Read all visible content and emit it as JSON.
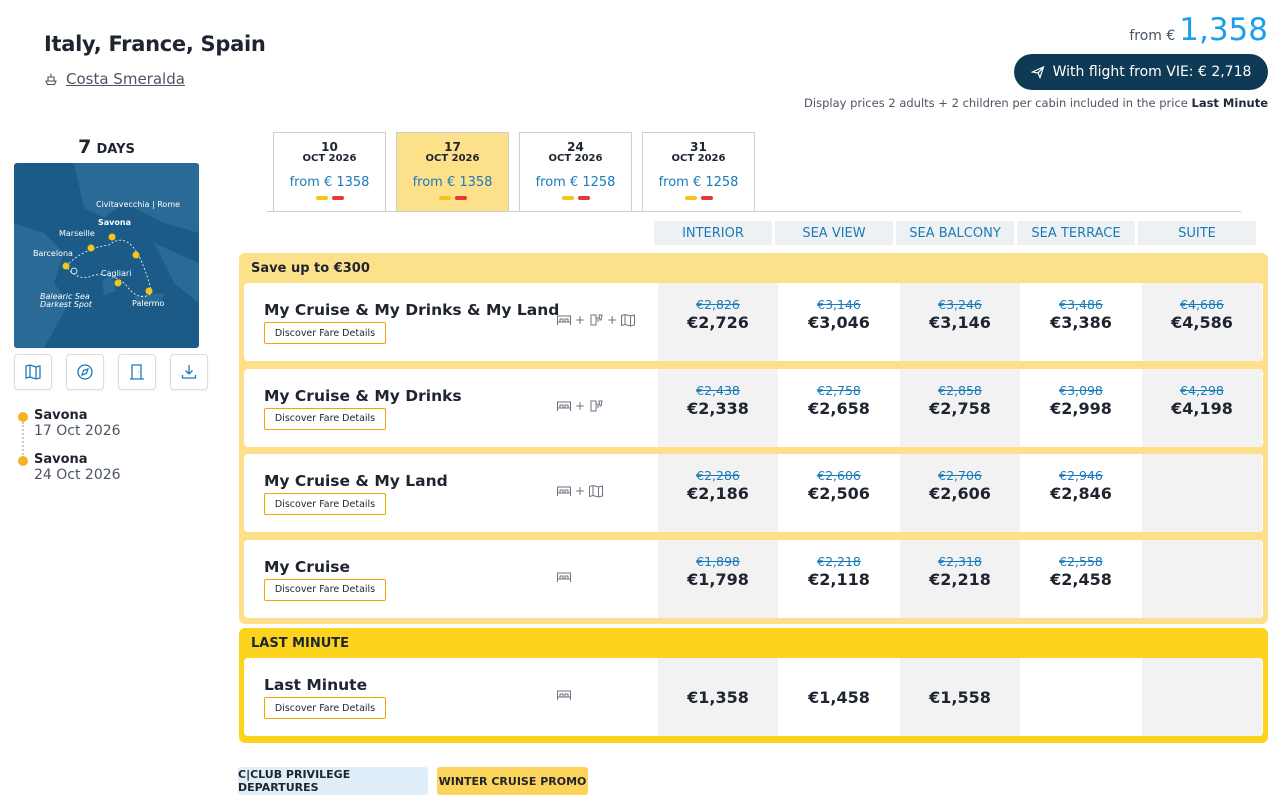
{
  "header": {
    "title": "Italy, France, Spain",
    "ship": "Costa Smeralda",
    "price_from_label": "from €",
    "price_from_value": "1,358",
    "flight_button": "With flight from VIE: € 2,718",
    "display_note": "Display prices 2 adults + 2 children per cabin included in the price",
    "display_note_bold": "Last Minute"
  },
  "left": {
    "days_num": "7",
    "days_unit": "DAYS",
    "map_labels": {
      "civitavecchia": "Civitavecchia | Rome",
      "savona": "Savona",
      "marseille": "Marseille",
      "barcelona": "Barcelona",
      "cagliari": "Cagliari",
      "balearic": "Balearic Sea",
      "darkest": "Darkest Spot",
      "palermo": "Palermo"
    },
    "tools": [
      "map-icon",
      "compass-icon",
      "door-icon",
      "download-icon"
    ],
    "stops": [
      {
        "port": "Savona",
        "date": "17 Oct 2026"
      },
      {
        "port": "Savona",
        "date": "24 Oct 2026"
      }
    ]
  },
  "tabs": [
    {
      "day": "10",
      "month": "OCT 2026",
      "from": "from € 1358",
      "active": false
    },
    {
      "day": "17",
      "month": "OCT 2026",
      "from": "from € 1358",
      "active": true
    },
    {
      "day": "24",
      "month": "OCT 2026",
      "from": "from € 1258",
      "active": false
    },
    {
      "day": "31",
      "month": "OCT 2026",
      "from": "from € 1258",
      "active": false
    }
  ],
  "categories": [
    "INTERIOR",
    "SEA VIEW",
    "SEA BALCONY",
    "SEA TERRACE",
    "SUITE"
  ],
  "groups": [
    {
      "title": "Save up to €300",
      "rows": [
        {
          "name": "My Cruise & My Drinks & My Land",
          "button": "Discover Fare Details",
          "prices": [
            {
              "old": "€2,826",
              "new": "€2,726"
            },
            {
              "old": "€3,146",
              "new": "€3,046"
            },
            {
              "old": "€3,246",
              "new": "€3,146"
            },
            {
              "old": "€3,486",
              "new": "€3,386"
            },
            {
              "old": "€4,686",
              "new": "€4,586"
            }
          ]
        },
        {
          "name": "My Cruise & My Drinks",
          "button": "Discover Fare Details",
          "prices": [
            {
              "old": "€2,438",
              "new": "€2,338"
            },
            {
              "old": "€2,758",
              "new": "€2,658"
            },
            {
              "old": "€2,858",
              "new": "€2,758"
            },
            {
              "old": "€3,098",
              "new": "€2,998"
            },
            {
              "old": "€4,298",
              "new": "€4,198"
            }
          ]
        },
        {
          "name": "My Cruise & My Land",
          "button": "Discover Fare Details",
          "prices": [
            {
              "old": "€2,286",
              "new": "€2,186"
            },
            {
              "old": "€2,606",
              "new": "€2,506"
            },
            {
              "old": "€2,706",
              "new": "€2,606"
            },
            {
              "old": "€2,946",
              "new": "€2,846"
            },
            {
              "old": "",
              "new": ""
            }
          ]
        },
        {
          "name": "My Cruise",
          "button": "Discover Fare Details",
          "prices": [
            {
              "old": "€1,898",
              "new": "€1,798"
            },
            {
              "old": "€2,218",
              "new": "€2,118"
            },
            {
              "old": "€2,318",
              "new": "€2,218"
            },
            {
              "old": "€2,558",
              "new": "€2,458"
            },
            {
              "old": "",
              "new": ""
            }
          ]
        }
      ]
    },
    {
      "title": "LAST MINUTE",
      "rows": [
        {
          "name": "Last Minute",
          "button": "Discover Fare Details",
          "prices": [
            {
              "old": "",
              "new": "€1,358"
            },
            {
              "old": "",
              "new": "€1,458"
            },
            {
              "old": "",
              "new": "€1,558"
            },
            {
              "old": "",
              "new": ""
            },
            {
              "old": "",
              "new": ""
            }
          ]
        }
      ]
    }
  ],
  "badges": {
    "club": "C|CLUB PRIVILEGE DEPARTURES",
    "winter": "WINTER CRUISE PROMO"
  },
  "colors": {
    "accent_blue": "#1d9ee8",
    "navy": "#0f3a55",
    "group_yellow": "#fde08a",
    "last_minute_yellow": "#fcd41e",
    "bar_yellow": "#f5c518",
    "bar_red": "#e53935"
  }
}
